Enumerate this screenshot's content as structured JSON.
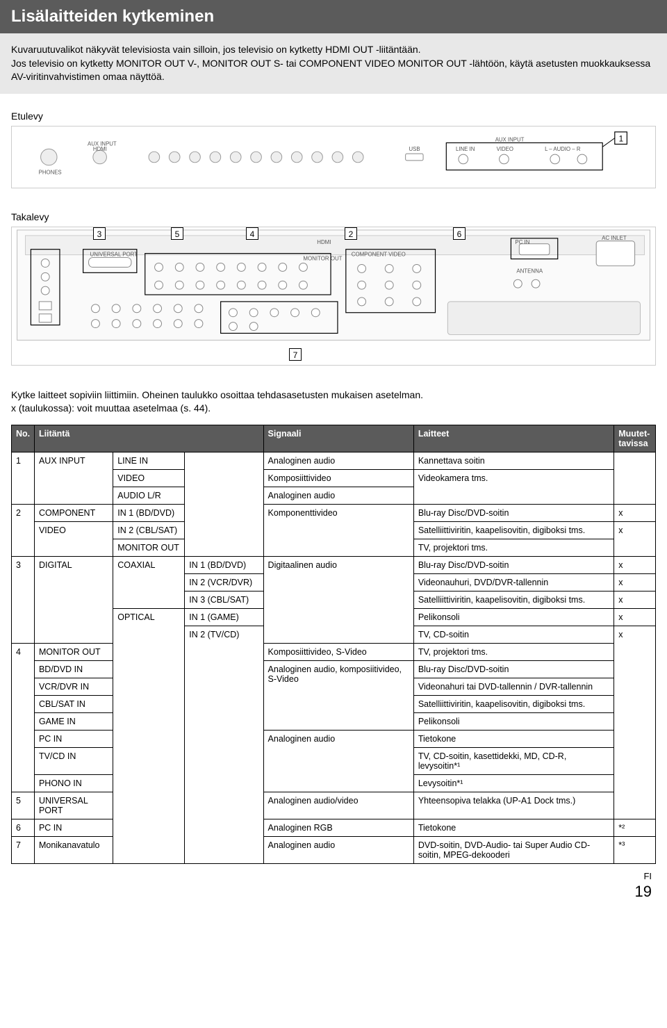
{
  "title": "Lisälaitteiden kytkeminen",
  "intro_p1": "Kuvaruutuvalikot näkyvät televisiosta vain silloin, jos televisio on kytketty HDMI OUT -liitäntään.",
  "intro_p2": "Jos televisio on kytketty MONITOR OUT V-, MONITOR OUT S- tai COMPONENT VIDEO MONITOR OUT -lähtöön, käytä asetusten muokkauksessa AV-viritinvahvistimen omaa näyttöä.",
  "front_label": "Etulevy",
  "back_label": "Takalevy",
  "front_sub": {
    "aux": "AUX INPUT",
    "line": "LINE IN",
    "video": "VIDEO",
    "audio": "L – AUDIO – R",
    "phones": "PHONES",
    "aux_in": "AUX INPUT",
    "hdmi": "HDMI",
    "usb": "USB"
  },
  "back_headers": {
    "univ": "UNIVERSAL PORT",
    "comp": "COMPONENT VIDEO",
    "hdmi": "HDMI",
    "pcin": "PC IN",
    "monitor": "MONITOR OUT",
    "ac": "AC INLET",
    "ant": "ANTENNA"
  },
  "callouts": [
    "1",
    "2",
    "3",
    "4",
    "5",
    "6",
    "7"
  ],
  "caption1": "Kytke laitteet sopiviin liittimiin. Oheinen taulukko osoittaa tehdasasetusten mukaisen asetelman.",
  "caption2": "x (taulukossa): voit muuttaa asetelmaa (s. 44).",
  "thead": {
    "no": "No.",
    "conn": "Liitäntä",
    "sig": "Signaali",
    "dev": "Laitteet",
    "mut": "Muutet-\ntavissa"
  },
  "rows": [
    {
      "no": "1",
      "c1": "AUX INPUT",
      "c2": "LINE IN",
      "c3": "",
      "sig": "Analoginen audio",
      "dev": "Kannettava soitin",
      "mut": ""
    },
    {
      "no": "",
      "c1": "",
      "c2": "VIDEO",
      "c3": "",
      "sig": "Komposiittivideo",
      "dev": "Videokamera tms.",
      "mut": ""
    },
    {
      "no": "",
      "c1": "",
      "c2": "AUDIO L/R",
      "c3": "",
      "sig": "Analoginen audio",
      "dev": "",
      "mut": ""
    },
    {
      "no": "2",
      "c1": "COMPONENT",
      "c2": "IN 1 (BD/DVD)",
      "c3": "",
      "sig": "Komponenttivideo",
      "dev": "Blu-ray Disc/DVD-soitin",
      "mut": "x"
    },
    {
      "no": "",
      "c1": "VIDEO",
      "c2": "IN 2 (CBL/SAT)",
      "c3": "",
      "sig": "",
      "dev": "Satelliittiviritin, kaapelisovitin, digiboksi tms.",
      "mut": "x"
    },
    {
      "no": "",
      "c1": "",
      "c2": "MONITOR OUT",
      "c3": "",
      "sig": "",
      "dev": "TV, projektori tms.",
      "mut": ""
    },
    {
      "no": "3",
      "c1": "DIGITAL",
      "c2": "COAXIAL",
      "c3": "IN 1 (BD/DVD)",
      "sig": "Digitaalinen audio",
      "dev": "Blu-ray Disc/DVD-soitin",
      "mut": "x"
    },
    {
      "no": "",
      "c1": "",
      "c2": "",
      "c3": "IN 2 (VCR/DVR)",
      "sig": "",
      "dev": "Videonauhuri, DVD/DVR-tallennin",
      "mut": "x"
    },
    {
      "no": "",
      "c1": "",
      "c2": "",
      "c3": "IN 3 (CBL/SAT)",
      "sig": "",
      "dev": "Satelliittiviritin, kaapelisovitin, digiboksi tms.",
      "mut": "x"
    },
    {
      "no": "",
      "c1": "",
      "c2": "OPTICAL",
      "c3": "IN 1 (GAME)",
      "sig": "",
      "dev": "Pelikonsoli",
      "mut": "x"
    },
    {
      "no": "",
      "c1": "",
      "c2": "",
      "c3": "IN 2 (TV/CD)",
      "sig": "",
      "dev": "TV, CD-soitin",
      "mut": "x"
    },
    {
      "no": "4",
      "c1": "MONITOR OUT",
      "c2": "",
      "c3": "",
      "sig": "Komposiittivideo, S-Video",
      "dev": "TV, projektori tms.",
      "mut": ""
    },
    {
      "no": "",
      "c1": "BD/DVD IN",
      "c2": "",
      "c3": "",
      "sig": "Analoginen audio, komposiitivideo, S-Video",
      "dev": "Blu-ray Disc/DVD-soitin",
      "mut": ""
    },
    {
      "no": "",
      "c1": "VCR/DVR IN",
      "c2": "",
      "c3": "",
      "sig": "",
      "dev": "Videonahuri tai DVD-tallennin / DVR-tallennin",
      "mut": ""
    },
    {
      "no": "",
      "c1": "CBL/SAT IN",
      "c2": "",
      "c3": "",
      "sig": "",
      "dev": "Satelliittiviritin, kaapelisovitin, digiboksi tms.",
      "mut": ""
    },
    {
      "no": "",
      "c1": "GAME IN",
      "c2": "",
      "c3": "",
      "sig": "",
      "dev": "Pelikonsoli",
      "mut": ""
    },
    {
      "no": "",
      "c1": "PC IN",
      "c2": "",
      "c3": "",
      "sig": "Analoginen audio",
      "dev": "Tietokone",
      "mut": ""
    },
    {
      "no": "",
      "c1": "TV/CD IN",
      "c2": "",
      "c3": "",
      "sig": "",
      "dev": "TV, CD-soitin, kasettidekki, MD, CD-R, levysoitin*¹",
      "mut": ""
    },
    {
      "no": "",
      "c1": "PHONO IN",
      "c2": "",
      "c3": "",
      "sig": "",
      "dev": "Levysoitin*¹",
      "mut": ""
    },
    {
      "no": "5",
      "c1": "UNIVERSAL PORT",
      "c2": "",
      "c3": "",
      "sig": "Analoginen audio/video",
      "dev": "Yhteensopiva telakka (UP-A1 Dock tms.)",
      "mut": ""
    },
    {
      "no": "6",
      "c1": "PC IN",
      "c2": "",
      "c3": "",
      "sig": "Analoginen RGB",
      "dev": "Tietokone",
      "mut": "*²"
    },
    {
      "no": "7",
      "c1": "Monikanavatulo",
      "c2": "",
      "c3": "",
      "sig": "Analoginen audio",
      "dev": "DVD-soitin, DVD-Audio- tai Super Audio CD-soitin, MPEG-dekooderi",
      "mut": "*³"
    }
  ],
  "lang": "FI",
  "page": "19"
}
